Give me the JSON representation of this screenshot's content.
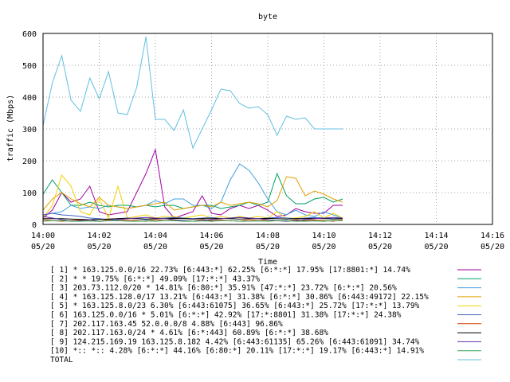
{
  "chart_data": {
    "type": "line",
    "title": "byte",
    "xlabel": "Time",
    "ylabel": "traffic (Mbps)",
    "ylim": [
      0,
      600
    ],
    "y_ticks": [
      0,
      100,
      200,
      300,
      400,
      500,
      600
    ],
    "x_ticks": [
      {
        "minute": 0,
        "time": "14:00",
        "date": "05/20"
      },
      {
        "minute": 2,
        "time": "14:02",
        "date": "05/20"
      },
      {
        "minute": 4,
        "time": "14:04",
        "date": "05/20"
      },
      {
        "minute": 6,
        "time": "14:06",
        "date": "05/20"
      },
      {
        "minute": 8,
        "time": "14:08",
        "date": "05/20"
      },
      {
        "minute": 10,
        "time": "14:10",
        "date": "05/20"
      },
      {
        "minute": 12,
        "time": "14:12",
        "date": "05/20"
      },
      {
        "minute": 14,
        "time": "14:14",
        "date": "05/20"
      },
      {
        "minute": 16,
        "time": "14:16",
        "date": "05/20"
      }
    ],
    "x_range_minutes": [
      0,
      16
    ],
    "sample_interval_minutes": 0.3333,
    "grid": true,
    "legend_position": "below",
    "series": [
      {
        "name": "[ 1] * 163.125.0.0/16 22.73% [6:443:*] 62.25% [6:*:*] 17.95% [17:8801:*] 14.74%",
        "color": "#a000a0",
        "values": [
          20,
          45,
          100,
          70,
          80,
          120,
          40,
          30,
          35,
          40,
          100,
          160,
          235,
          55,
          20,
          30,
          40,
          90,
          35,
          30,
          50,
          60,
          50,
          60,
          45,
          25,
          30,
          50,
          40,
          35,
          35,
          60,
          60
        ]
      },
      {
        "name": "[ 2] * * 19.75% [6:*:*] 49.09% [17:*:*] 43.37%",
        "color": "#00a060",
        "values": [
          95,
          140,
          100,
          60,
          60,
          70,
          60,
          55,
          60,
          60,
          55,
          60,
          55,
          60,
          60,
          50,
          55,
          60,
          60,
          50,
          55,
          60,
          70,
          60,
          70,
          160,
          90,
          65,
          65,
          80,
          85,
          70,
          80
        ]
      },
      {
        "name": "[ 3] 203.73.112.0/20 * 14.81% [6:80:*] 35.91% [47:*:*] 23.72% [6:*:*] 20.56%",
        "color": "#40a0e0",
        "values": [
          30,
          35,
          40,
          60,
          50,
          55,
          50,
          60,
          55,
          50,
          55,
          60,
          75,
          65,
          80,
          80,
          60,
          60,
          50,
          70,
          140,
          190,
          170,
          130,
          80,
          40,
          30,
          45,
          30,
          25,
          40,
          30,
          20
        ]
      },
      {
        "name": "[ 4] * 163.125.128.0/17 13.21% [6:443:*] 31.38% [6:*:*] 30.86% [6:443:49172] 22.15%",
        "color": "#e0a000",
        "values": [
          45,
          80,
          100,
          80,
          65,
          55,
          85,
          60,
          55,
          50,
          55,
          60,
          65,
          70,
          45,
          50,
          55,
          60,
          55,
          70,
          60,
          65,
          70,
          65,
          55,
          75,
          150,
          145,
          90,
          105,
          95,
          80,
          70
        ]
      },
      {
        "name": "[ 5] * 163.125.8.0/23 6.30% [6:443:61075] 36.65% [6:443:*] 25.72% [17:*:*] 13.79%",
        "color": "#f0d000",
        "values": [
          20,
          60,
          155,
          120,
          40,
          30,
          80,
          20,
          120,
          20,
          25,
          30,
          20,
          25,
          25,
          20,
          25,
          30,
          20,
          25,
          20,
          25,
          20,
          25,
          20,
          40,
          20,
          20,
          25,
          40,
          20,
          35,
          20
        ]
      },
      {
        "name": "[ 6] 163.125.0.0/16 * 5.01% [6:*:*] 42.92% [17:*:8801] 31.38% [17:*:*] 24.38%",
        "color": "#4060c0",
        "values": [
          30,
          35,
          30,
          28,
          25,
          20,
          18,
          15,
          18,
          20,
          18,
          15,
          18,
          20,
          22,
          20,
          18,
          20,
          22,
          18,
          20,
          22,
          20,
          18,
          20,
          22,
          20,
          18,
          20,
          22,
          20,
          18,
          20
        ]
      },
      {
        "name": "[ 7] 202.117.163.45 52.0.0.0/8 4.88% [6:443] 96.86%",
        "color": "#d04000",
        "values": [
          15,
          12,
          10,
          12,
          14,
          12,
          10,
          15,
          12,
          14,
          12,
          10,
          15,
          12,
          14,
          12,
          10,
          15,
          12,
          14,
          12,
          10,
          15,
          12,
          14,
          12,
          10,
          15,
          12,
          14,
          12,
          10,
          15
        ]
      },
      {
        "name": "[ 8] 202.117.163.0/24 * 4.61% [6:*:443] 60.89% [6:*:*] 38.68%",
        "color": "#000000",
        "values": [
          18,
          18,
          18,
          17,
          16,
          15,
          16,
          17,
          18,
          19,
          18,
          17,
          18,
          18,
          19,
          18,
          17,
          18,
          18,
          19,
          18,
          17,
          18,
          18,
          19,
          18,
          17,
          18,
          18,
          19,
          18,
          17,
          18
        ]
      },
      {
        "name": "[ 9] 124.215.169.19 163.125.8.182 4.42% [6:443:61135] 65.26% [6:443:61091] 34.74%",
        "color": "#6030a0",
        "values": [
          25,
          20,
          15,
          10,
          12,
          15,
          10,
          12,
          15,
          18,
          20,
          22,
          20,
          18,
          15,
          12,
          10,
          12,
          15,
          18,
          20,
          22,
          20,
          18,
          15,
          12,
          10,
          12,
          15,
          18,
          20,
          22,
          20
        ]
      },
      {
        "name": "[10] *:: *:: 4.28% [6:*:*] 44.16% [6:80:*] 20.11% [17:*:*] 19.17% [6:443:*] 14.91%",
        "color": "#30a050",
        "values": [
          10,
          12,
          12,
          10,
          10,
          11,
          10,
          12,
          12,
          10,
          10,
          11,
          10,
          12,
          12,
          10,
          10,
          11,
          10,
          12,
          12,
          10,
          10,
          11,
          10,
          12,
          12,
          10,
          10,
          11,
          10,
          12,
          12
        ]
      },
      {
        "name": "TOTAL",
        "color": "#60c0e0",
        "values": [
          310,
          445,
          530,
          390,
          355,
          460,
          395,
          480,
          350,
          345,
          430,
          590,
          330,
          330,
          295,
          360,
          240,
          300,
          360,
          425,
          420,
          380,
          365,
          370,
          345,
          280,
          340,
          330,
          335,
          300,
          300,
          300,
          300
        ]
      }
    ]
  }
}
